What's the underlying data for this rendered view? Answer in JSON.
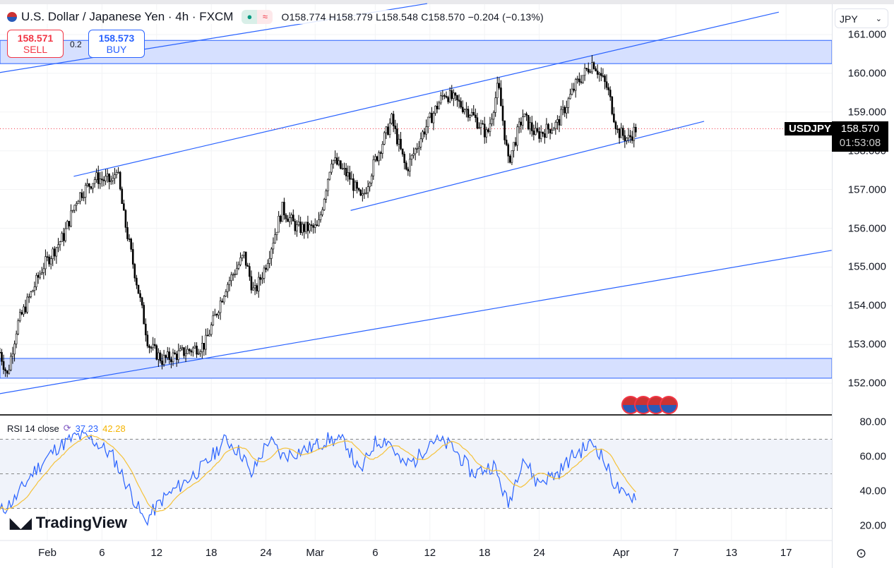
{
  "header": {
    "title": "U.S. Dollar / Japanese Yen · 4h · FXCM",
    "open": "O158.774",
    "high": "H158.779",
    "low": "L158.548",
    "close": "C158.570",
    "change": "−0.204 (−0.13%)",
    "status_icon": "market-open-dot",
    "indicator_icon": "approx-icon"
  },
  "trade": {
    "sell_price": "158.571",
    "sell_label": "SELL",
    "spread": "0.2",
    "buy_price": "158.573",
    "buy_label": "BUY"
  },
  "currency_select": "JPY",
  "symbol_tag": "USDJPY",
  "current_price": "158.570",
  "countdown": "01:53:08",
  "rsi": {
    "label": "RSI 14 close",
    "value": "37.23",
    "ma_value": "42.28"
  },
  "logo": "TradingView",
  "colors": {
    "up": "#ffffff",
    "down": "#000000",
    "channel": "#2962ff",
    "zone": "#d6e0ff",
    "rsi": "#2962ff",
    "rsi_ma": "#f5c23a"
  },
  "chart_data": [
    {
      "type": "candlestick",
      "title": "USDJPY 4h",
      "ylim": [
        151.2,
        161.5
      ],
      "y_ticks": [
        "161.000",
        "160.000",
        "159.000",
        "158.000",
        "157.000",
        "156.000",
        "155.000",
        "154.000",
        "153.000",
        "152.000"
      ],
      "x_unit": "days since Feb 1",
      "x_ticks": [
        {
          "label": "Feb",
          "day": 0
        },
        {
          "label": "6",
          "day": 6
        },
        {
          "label": "12",
          "day": 12
        },
        {
          "label": "18",
          "day": 18
        },
        {
          "label": "24",
          "day": 24
        },
        {
          "label": "Mar",
          "day": 29.4
        },
        {
          "label": "6",
          "day": 36
        },
        {
          "label": "12",
          "day": 42
        },
        {
          "label": "18",
          "day": 48
        },
        {
          "label": "24",
          "day": 54
        },
        {
          "label": "Apr",
          "day": 63
        },
        {
          "label": "7",
          "day": 69
        },
        {
          "label": "13",
          "day": 75.1
        },
        {
          "label": "17",
          "day": 81.1
        }
      ],
      "close_path": [
        [
          -5.2,
          152.8
        ],
        [
          -4.4,
          152.2
        ],
        [
          -3.3,
          153.5
        ],
        [
          -0.5,
          155
        ],
        [
          1.8,
          155.8
        ],
        [
          3.3,
          156.8
        ],
        [
          5.3,
          157.3
        ],
        [
          7.2,
          157.2
        ],
        [
          7.6,
          157.6
        ],
        [
          8.4,
          156.3
        ],
        [
          9.9,
          154.5
        ],
        [
          11.1,
          153
        ],
        [
          12.6,
          152.6
        ],
        [
          15,
          152.8
        ],
        [
          17.3,
          153
        ],
        [
          19.6,
          154.5
        ],
        [
          21.6,
          155.3
        ],
        [
          22.7,
          154.3
        ],
        [
          23.9,
          155
        ],
        [
          25.8,
          156.5
        ],
        [
          27.4,
          156
        ],
        [
          29.7,
          156
        ],
        [
          31.2,
          157.8
        ],
        [
          33.2,
          157.3
        ],
        [
          34.5,
          156.7
        ],
        [
          35.9,
          157.7
        ],
        [
          37.8,
          158.8
        ],
        [
          39.4,
          157.5
        ],
        [
          41.3,
          158.5
        ],
        [
          43.6,
          159.5
        ],
        [
          46.4,
          159
        ],
        [
          48.3,
          158.4
        ],
        [
          49.5,
          159.7
        ],
        [
          50.6,
          157.7
        ],
        [
          52.2,
          158.9
        ],
        [
          53.7,
          158.4
        ],
        [
          56,
          158.7
        ],
        [
          58,
          159.7
        ],
        [
          59.9,
          160.3
        ],
        [
          61.5,
          159.6
        ],
        [
          62.6,
          158.5
        ],
        [
          63.8,
          158.3
        ],
        [
          64.6,
          158.57
        ]
      ],
      "trendlines": [
        {
          "name": "upper-channel",
          "from": [
            2.9,
            157.34
          ],
          "to": [
            80.3,
            161.58
          ]
        },
        {
          "name": "lower-channel",
          "from": [
            33.3,
            156.46
          ],
          "to": [
            72.1,
            158.76
          ]
        },
        {
          "name": "long-support",
          "from": [
            -5.2,
            151.73
          ],
          "to": [
            86.1,
            155.43
          ]
        },
        {
          "name": "upper-parallel",
          "from": [
            -5.2,
            160.02
          ],
          "to": [
            41.7,
            161.8
          ]
        }
      ],
      "zones": [
        {
          "name": "resistance-zone",
          "from": 160.25,
          "to": 160.85
        },
        {
          "name": "support-zone",
          "from": 152.13,
          "to": 152.64
        }
      ],
      "current_price": 158.57
    },
    {
      "type": "line",
      "title": "RSI 14 close",
      "ylim": [
        15,
        85
      ],
      "y_ticks": [
        "80.00",
        "60.00",
        "40.00",
        "20.00"
      ],
      "bands": [
        70,
        50,
        30
      ],
      "rsi_path": [
        [
          -5.2,
          28
        ],
        [
          -3.6,
          35
        ],
        [
          -1.7,
          50
        ],
        [
          1,
          65
        ],
        [
          3.3,
          72
        ],
        [
          4.9,
          70
        ],
        [
          7.2,
          60
        ],
        [
          9.1,
          40
        ],
        [
          10.7,
          22
        ],
        [
          12.6,
          35
        ],
        [
          15,
          45
        ],
        [
          17.3,
          55
        ],
        [
          19.6,
          70
        ],
        [
          21.6,
          60
        ],
        [
          22.3,
          48
        ],
        [
          24.3,
          70
        ],
        [
          25.8,
          60
        ],
        [
          28.9,
          65
        ],
        [
          30.9,
          70
        ],
        [
          32.8,
          68
        ],
        [
          34.3,
          50
        ],
        [
          35.9,
          68
        ],
        [
          37.4,
          70
        ],
        [
          39,
          55
        ],
        [
          40.5,
          58
        ],
        [
          42.1,
          70
        ],
        [
          44.4,
          66
        ],
        [
          46.7,
          50
        ],
        [
          49,
          55
        ],
        [
          50.6,
          32
        ],
        [
          52.2,
          60
        ],
        [
          53.7,
          45
        ],
        [
          56,
          50
        ],
        [
          57.6,
          60
        ],
        [
          59.9,
          68
        ],
        [
          60.7,
          62
        ],
        [
          62.2,
          45
        ],
        [
          63.4,
          36
        ],
        [
          64.6,
          38
        ]
      ]
    }
  ]
}
